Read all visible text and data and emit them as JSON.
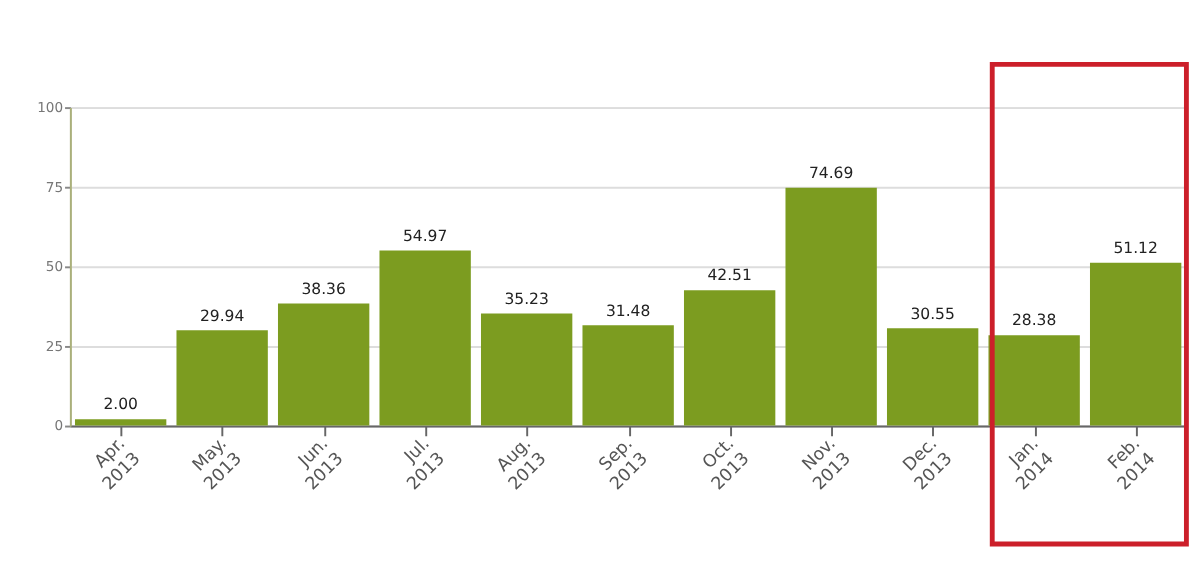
{
  "chart_data": {
    "type": "bar",
    "categories": [
      "Apr. 2013",
      "May. 2013",
      "Jun. 2013",
      "Jul. 2013",
      "Aug. 2013",
      "Sep. 2013",
      "Oct. 2013",
      "Nov. 2013",
      "Dec. 2013",
      "Jan. 2014",
      "Feb. 2014"
    ],
    "values": [
      2.0,
      29.94,
      38.36,
      54.97,
      35.23,
      31.48,
      42.51,
      74.69,
      30.55,
      28.38,
      51.12
    ],
    "value_labels": [
      "2.00",
      "29.94",
      "38.36",
      "54.97",
      "35.23",
      "31.48",
      "42.51",
      "74.69",
      "30.55",
      "28.38",
      "51.12"
    ],
    "color": "#7c9c20",
    "ylim": [
      0,
      100
    ],
    "yticks": [
      0,
      25,
      50,
      75,
      100
    ],
    "grid": "y"
  }
}
